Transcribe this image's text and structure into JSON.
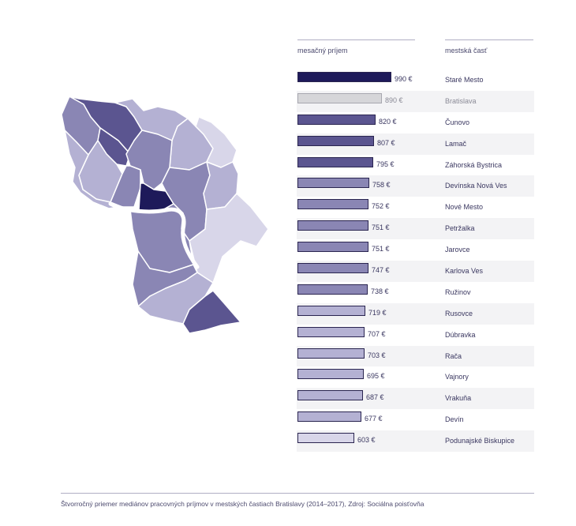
{
  "headers": {
    "income": "mesačný príjem",
    "district": "mestská časť"
  },
  "footer": "Štvorročný priemer mediánov pracovných príjmov v mestských častiach Bratislavy (2014–2017), Zdroj: Sociálna poisťovňa",
  "chart_data": {
    "type": "bar",
    "orientation": "horizontal",
    "value_suffix": " €",
    "xlim": [
      0,
      990
    ],
    "categories": [
      "Staré Mesto",
      "Bratislava",
      "Čunovo",
      "Lamač",
      "Záhorská Bystrica",
      "Devínska Nová Ves",
      "Nové Mesto",
      "Petržalka",
      "Jarovce",
      "Karlova Ves",
      "Ružinov",
      "Rusovce",
      "Dúbravka",
      "Rača",
      "Vajnory",
      "Vrakuňa",
      "Devín",
      "Podunajské Biskupice"
    ],
    "values": [
      990,
      890,
      820,
      807,
      795,
      758,
      752,
      751,
      751,
      747,
      738,
      719,
      707,
      703,
      695,
      687,
      677,
      603
    ],
    "colors": [
      "#1e1a5a",
      "#d6d6d9",
      "#5b5590",
      "#5b5590",
      "#5b5590",
      "#8a86b4",
      "#8a86b4",
      "#8a86b4",
      "#8a86b4",
      "#8a86b4",
      "#8a86b4",
      "#b4b1d3",
      "#b4b1d3",
      "#b4b1d3",
      "#b4b1d3",
      "#b4b1d3",
      "#b4b1d3",
      "#d8d6e9"
    ],
    "highlight_muted": "Bratislava"
  },
  "map_regions": [
    {
      "name": "Staré Mesto",
      "color": "#1e1a5a"
    },
    {
      "name": "Čunovo",
      "color": "#5b5590"
    },
    {
      "name": "Lamač",
      "color": "#5b5590"
    },
    {
      "name": "Záhorská Bystrica",
      "color": "#5b5590"
    },
    {
      "name": "Devínska Nová Ves",
      "color": "#8a86b4"
    },
    {
      "name": "Nové Mesto",
      "color": "#8a86b4"
    },
    {
      "name": "Petržalka",
      "color": "#8a86b4"
    },
    {
      "name": "Jarovce",
      "color": "#8a86b4"
    },
    {
      "name": "Karlova Ves",
      "color": "#8a86b4"
    },
    {
      "name": "Ružinov",
      "color": "#8a86b4"
    },
    {
      "name": "Rusovce",
      "color": "#b4b1d3"
    },
    {
      "name": "Dúbravka",
      "color": "#b4b1d3"
    },
    {
      "name": "Rača",
      "color": "#b4b1d3"
    },
    {
      "name": "Vajnory",
      "color": "#b4b1d3"
    },
    {
      "name": "Vrakuňa",
      "color": "#b4b1d3"
    },
    {
      "name": "Devín",
      "color": "#b4b1d3"
    },
    {
      "name": "Podunajské Biskupice",
      "color": "#d8d6e9"
    }
  ]
}
